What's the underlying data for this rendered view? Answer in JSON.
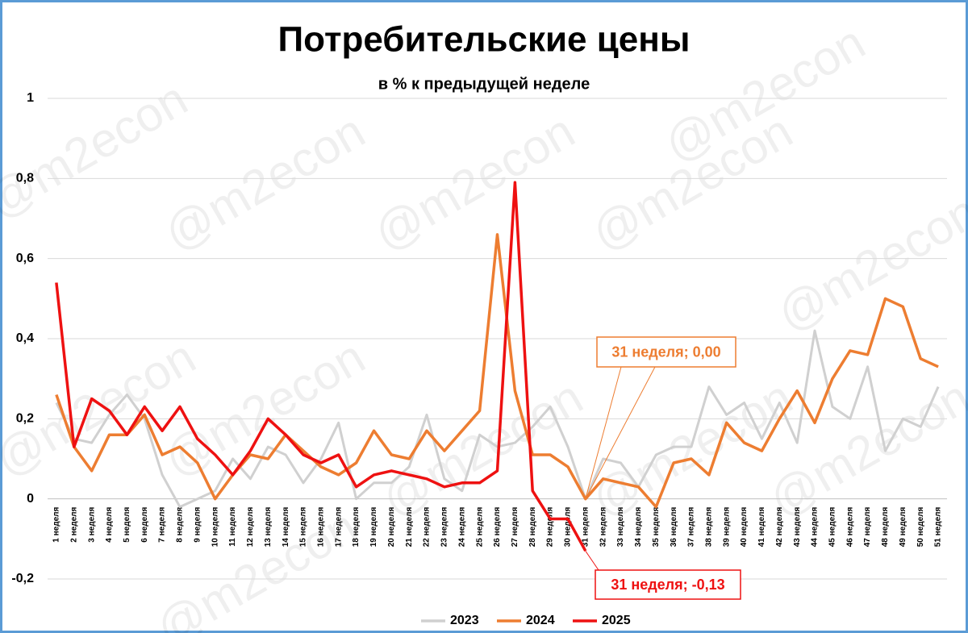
{
  "chart_data": {
    "type": "line",
    "title": "Потребительские цены",
    "subtitle": "в % к предыдущей неделе",
    "watermark": "@m2econ",
    "categories": [
      "1 неделя",
      "2 неделя",
      "3 неделя",
      "4 неделя",
      "5 неделя",
      "6 неделя",
      "7 неделя",
      "8 неделя",
      "9 неделя",
      "10 неделя",
      "11 неделя",
      "12 неделя",
      "13 неделя",
      "14 неделя",
      "15 неделя",
      "16 неделя",
      "17 неделя",
      "18 неделя",
      "19 неделя",
      "20 неделя",
      "21 неделя",
      "22 неделя",
      "23 неделя",
      "24 неделя",
      "25 неделя",
      "26 неделя",
      "27 неделя",
      "28 неделя",
      "29 неделя",
      "30 неделя",
      "31 неделя",
      "32 неделя",
      "33 неделя",
      "34 неделя",
      "35 неделя",
      "36 неделя",
      "37 неделя",
      "38 неделя",
      "39 неделя",
      "40 неделя",
      "41 неделя",
      "42 неделя",
      "43 неделя",
      "44 неделя",
      "45 неделя",
      "46 неделя",
      "47 неделя",
      "48 неделя",
      "49 неделя",
      "50 неделя",
      "51 неделя"
    ],
    "series": [
      {
        "name": "2023",
        "color": "#d0d0d0",
        "values": [
          0.24,
          0.15,
          0.14,
          0.21,
          0.26,
          0.2,
          0.06,
          -0.02,
          0.0,
          0.02,
          0.1,
          0.05,
          0.13,
          0.11,
          0.04,
          0.1,
          0.19,
          0.0,
          0.04,
          0.04,
          0.08,
          0.21,
          0.05,
          0.02,
          0.16,
          0.13,
          0.14,
          0.18,
          0.23,
          0.13,
          0.0,
          0.1,
          0.09,
          0.03,
          0.11,
          0.13,
          0.13,
          0.28,
          0.21,
          0.24,
          0.15,
          0.24,
          0.14,
          0.42,
          0.23,
          0.2,
          0.33,
          0.12,
          0.2,
          0.18,
          0.28
        ]
      },
      {
        "name": "2024",
        "color": "#ed7d31",
        "values": [
          0.26,
          0.13,
          0.07,
          0.16,
          0.16,
          0.21,
          0.11,
          0.13,
          0.09,
          0.0,
          0.06,
          0.11,
          0.1,
          0.16,
          0.12,
          0.08,
          0.06,
          0.09,
          0.17,
          0.11,
          0.1,
          0.17,
          0.12,
          0.17,
          0.22,
          0.66,
          0.27,
          0.11,
          0.11,
          0.08,
          0.0,
          0.05,
          0.04,
          0.03,
          -0.02,
          0.09,
          0.1,
          0.06,
          0.19,
          0.14,
          0.12,
          0.2,
          0.27,
          0.19,
          0.3,
          0.37,
          0.36,
          0.5,
          0.48,
          0.35,
          0.33
        ]
      },
      {
        "name": "2025",
        "color": "#ee1111",
        "values": [
          0.54,
          0.13,
          0.25,
          0.22,
          0.16,
          0.23,
          0.17,
          0.23,
          0.15,
          0.11,
          0.06,
          0.12,
          0.2,
          0.16,
          0.11,
          0.09,
          0.11,
          0.03,
          0.06,
          0.07,
          0.06,
          0.05,
          0.03,
          0.04,
          0.04,
          0.07,
          0.79,
          0.02,
          -0.05,
          -0.05,
          -0.13,
          null,
          null,
          null,
          null,
          null,
          null,
          null,
          null,
          null,
          null,
          null,
          null,
          null,
          null,
          null,
          null,
          null,
          null,
          null,
          null
        ]
      }
    ],
    "ylim": [
      -0.2,
      1
    ],
    "yticks": [
      {
        "value": -0.2,
        "label": "-0,2"
      },
      0,
      {
        "value": 0.2,
        "label": "0,2"
      },
      {
        "value": 0.4,
        "label": "0,4"
      },
      {
        "value": 0.6,
        "label": "0,6"
      },
      {
        "value": 0.8,
        "label": "0,8"
      },
      1
    ],
    "grid": true,
    "legend": "bottom",
    "annotations": [
      {
        "text": "31 неделя; 0,00",
        "series": 1,
        "index": 30
      },
      {
        "text": "31 неделя; -0,13",
        "series": 2,
        "index": 30
      }
    ]
  }
}
